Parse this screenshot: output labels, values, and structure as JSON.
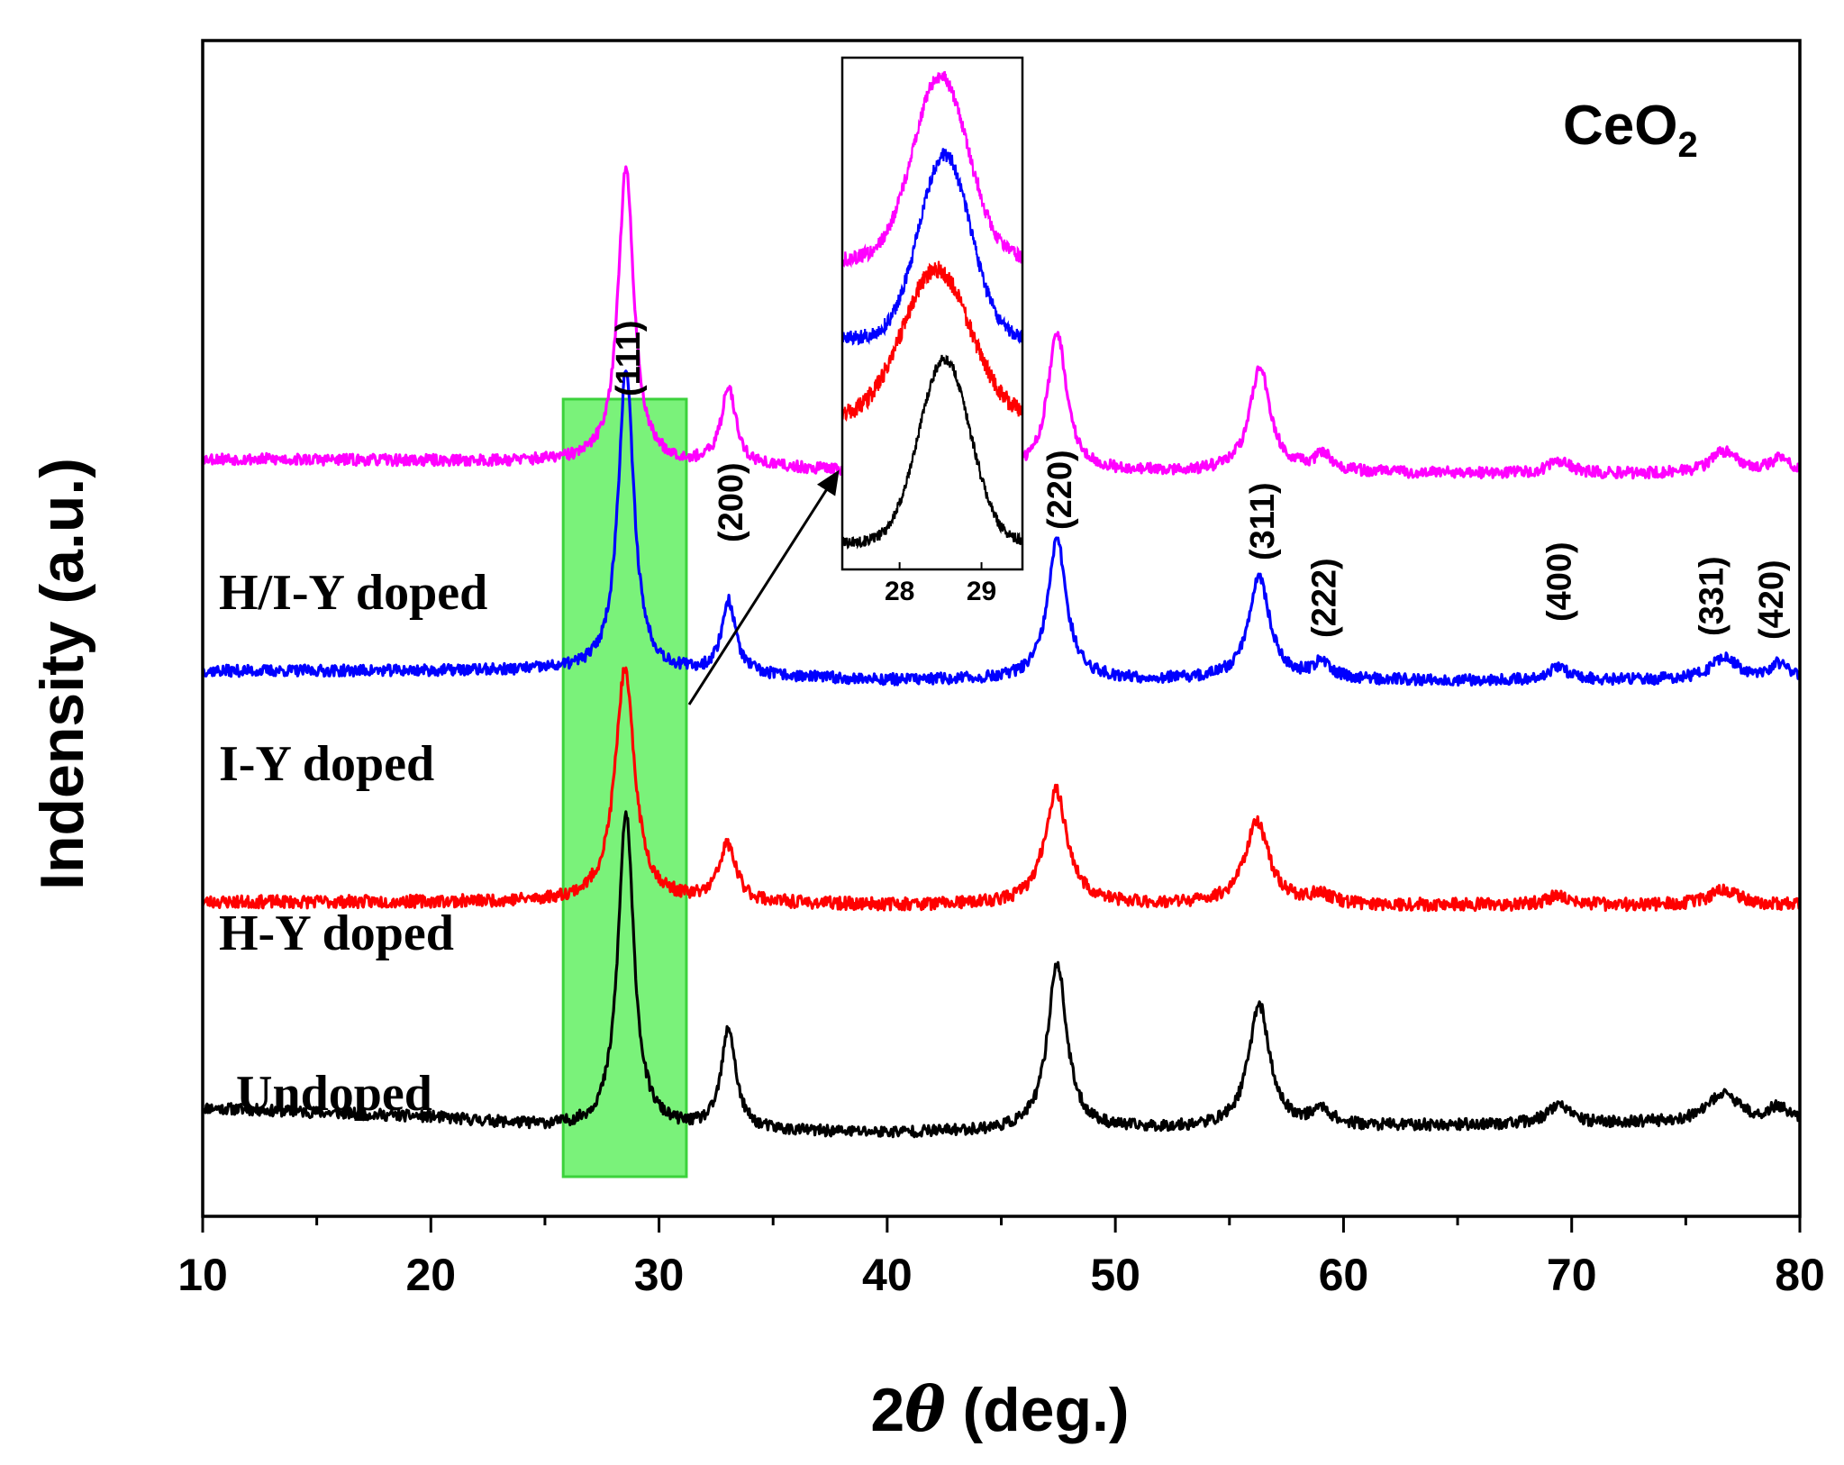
{
  "chart_data": {
    "type": "line",
    "title": "",
    "compound": {
      "main": "CeO",
      "sub": "2"
    },
    "xlabel": {
      "prefix": "2",
      "symbol": "θ",
      "suffix": " (deg.)"
    },
    "ylabel": "Indensity (a.u.)",
    "xlim": [
      10,
      80
    ],
    "x_ticks": [
      10,
      20,
      30,
      40,
      50,
      60,
      70,
      80
    ],
    "x_minor_step": 5,
    "grid": false,
    "highlight_region": {
      "x_range": [
        25.8,
        31.2
      ],
      "color": "#7af27a",
      "border": "#3cd23c"
    },
    "peaks": [
      {
        "label": "(111)",
        "x": 28.6
      },
      {
        "label": "(200)",
        "x": 33.1
      },
      {
        "label": "(220)",
        "x": 47.5
      },
      {
        "label": "(311)",
        "x": 56.4
      },
      {
        "label": "(222)",
        "x": 59.1
      },
      {
        "label": "(400)",
        "x": 69.4
      },
      {
        "label": "(331)",
        "x": 76.7
      },
      {
        "label": "(420)",
        "x": 79.1
      }
    ],
    "series": [
      {
        "name": "Undoped",
        "color": "#000000",
        "offset": 0,
        "noise": 0.018,
        "seed": 11,
        "peaks": [
          {
            "x": 28.55,
            "h": 1.0,
            "w": 0.42
          },
          {
            "x": 33.05,
            "h": 0.32,
            "w": 0.38
          },
          {
            "x": 47.45,
            "h": 0.53,
            "w": 0.5
          },
          {
            "x": 56.3,
            "h": 0.39,
            "w": 0.55
          },
          {
            "x": 59.05,
            "h": 0.05,
            "w": 0.5
          },
          {
            "x": 69.4,
            "h": 0.06,
            "w": 0.55
          },
          {
            "x": 76.65,
            "h": 0.09,
            "w": 0.75
          },
          {
            "x": 79.05,
            "h": 0.04,
            "w": 0.5
          }
        ],
        "baseline": [
          [
            10,
            0.1
          ],
          [
            20,
            0.07
          ],
          [
            25,
            0.04
          ],
          [
            27,
            0.03
          ],
          [
            40,
            0.02
          ],
          [
            80,
            0.06
          ]
        ]
      },
      {
        "name": "H-Y doped",
        "color": "#ff0000",
        "offset": 0.72,
        "noise": 0.02,
        "seed": 23,
        "peaks": [
          {
            "x": 28.5,
            "h": 0.73,
            "w": 0.52
          },
          {
            "x": 33.0,
            "h": 0.18,
            "w": 0.45
          },
          {
            "x": 47.4,
            "h": 0.36,
            "w": 0.6
          },
          {
            "x": 56.2,
            "h": 0.26,
            "w": 0.65
          },
          {
            "x": 59.0,
            "h": 0.03,
            "w": 0.5
          },
          {
            "x": 69.4,
            "h": 0.03,
            "w": 0.55
          },
          {
            "x": 76.7,
            "h": 0.05,
            "w": 0.75
          }
        ],
        "baseline": [
          [
            10,
            0.03
          ],
          [
            25,
            0.03
          ],
          [
            40,
            0.02
          ],
          [
            80,
            0.02
          ]
        ]
      },
      {
        "name": "I-Y doped",
        "color": "#0000ff",
        "offset": 1.42,
        "noise": 0.018,
        "seed": 37,
        "peaks": [
          {
            "x": 28.55,
            "h": 0.96,
            "w": 0.42
          },
          {
            "x": 33.05,
            "h": 0.23,
            "w": 0.38
          },
          {
            "x": 47.45,
            "h": 0.44,
            "w": 0.5
          },
          {
            "x": 56.3,
            "h": 0.33,
            "w": 0.55
          },
          {
            "x": 59.05,
            "h": 0.05,
            "w": 0.5
          },
          {
            "x": 69.4,
            "h": 0.04,
            "w": 0.55
          },
          {
            "x": 76.7,
            "h": 0.07,
            "w": 0.75
          },
          {
            "x": 79.1,
            "h": 0.05,
            "w": 0.5
          }
        ],
        "baseline": [
          [
            10,
            0.06
          ],
          [
            25,
            0.06
          ],
          [
            40,
            0.03
          ],
          [
            80,
            0.03
          ]
        ]
      },
      {
        "name": "H/I-Y doped",
        "color": "#ff00ff",
        "offset": 2.1,
        "noise": 0.018,
        "seed": 53,
        "peaks": [
          {
            "x": 28.55,
            "h": 0.93,
            "w": 0.42
          },
          {
            "x": 33.05,
            "h": 0.25,
            "w": 0.38
          },
          {
            "x": 47.45,
            "h": 0.44,
            "w": 0.5
          },
          {
            "x": 56.35,
            "h": 0.33,
            "w": 0.55
          },
          {
            "x": 59.1,
            "h": 0.05,
            "w": 0.5
          },
          {
            "x": 69.45,
            "h": 0.04,
            "w": 0.55
          },
          {
            "x": 76.7,
            "h": 0.07,
            "w": 0.75
          },
          {
            "x": 79.15,
            "h": 0.05,
            "w": 0.5
          }
        ],
        "baseline": [
          [
            10,
            0.05
          ],
          [
            25,
            0.04
          ],
          [
            40,
            0.01
          ],
          [
            80,
            0.0
          ]
        ]
      }
    ],
    "y_range": [
      -0.1,
      3.4
    ],
    "inset": {
      "xlim": [
        27.3,
        29.5
      ],
      "x_ticks": [
        28,
        29
      ],
      "series": [
        {
          "name": "Undoped",
          "color": "#000000",
          "center": 28.55,
          "width": 0.42,
          "height": 1.0,
          "offset": 0.0,
          "base": 0.05,
          "noise": 0.03,
          "seed": 101
        },
        {
          "name": "H-Y doped",
          "color": "#ff0000",
          "center": 28.45,
          "width": 0.55,
          "height": 0.8,
          "offset": 0.62,
          "base": 0.12,
          "noise": 0.05,
          "seed": 131
        },
        {
          "name": "I-Y doped",
          "color": "#0000ff",
          "center": 28.55,
          "width": 0.42,
          "height": 1.0,
          "offset": 1.12,
          "base": 0.05,
          "noise": 0.04,
          "seed": 167
        },
        {
          "name": "H/I-Y doped",
          "color": "#ff00ff",
          "center": 28.5,
          "width": 0.45,
          "height": 1.0,
          "offset": 1.52,
          "base": 0.08,
          "noise": 0.04,
          "seed": 199
        }
      ]
    }
  }
}
